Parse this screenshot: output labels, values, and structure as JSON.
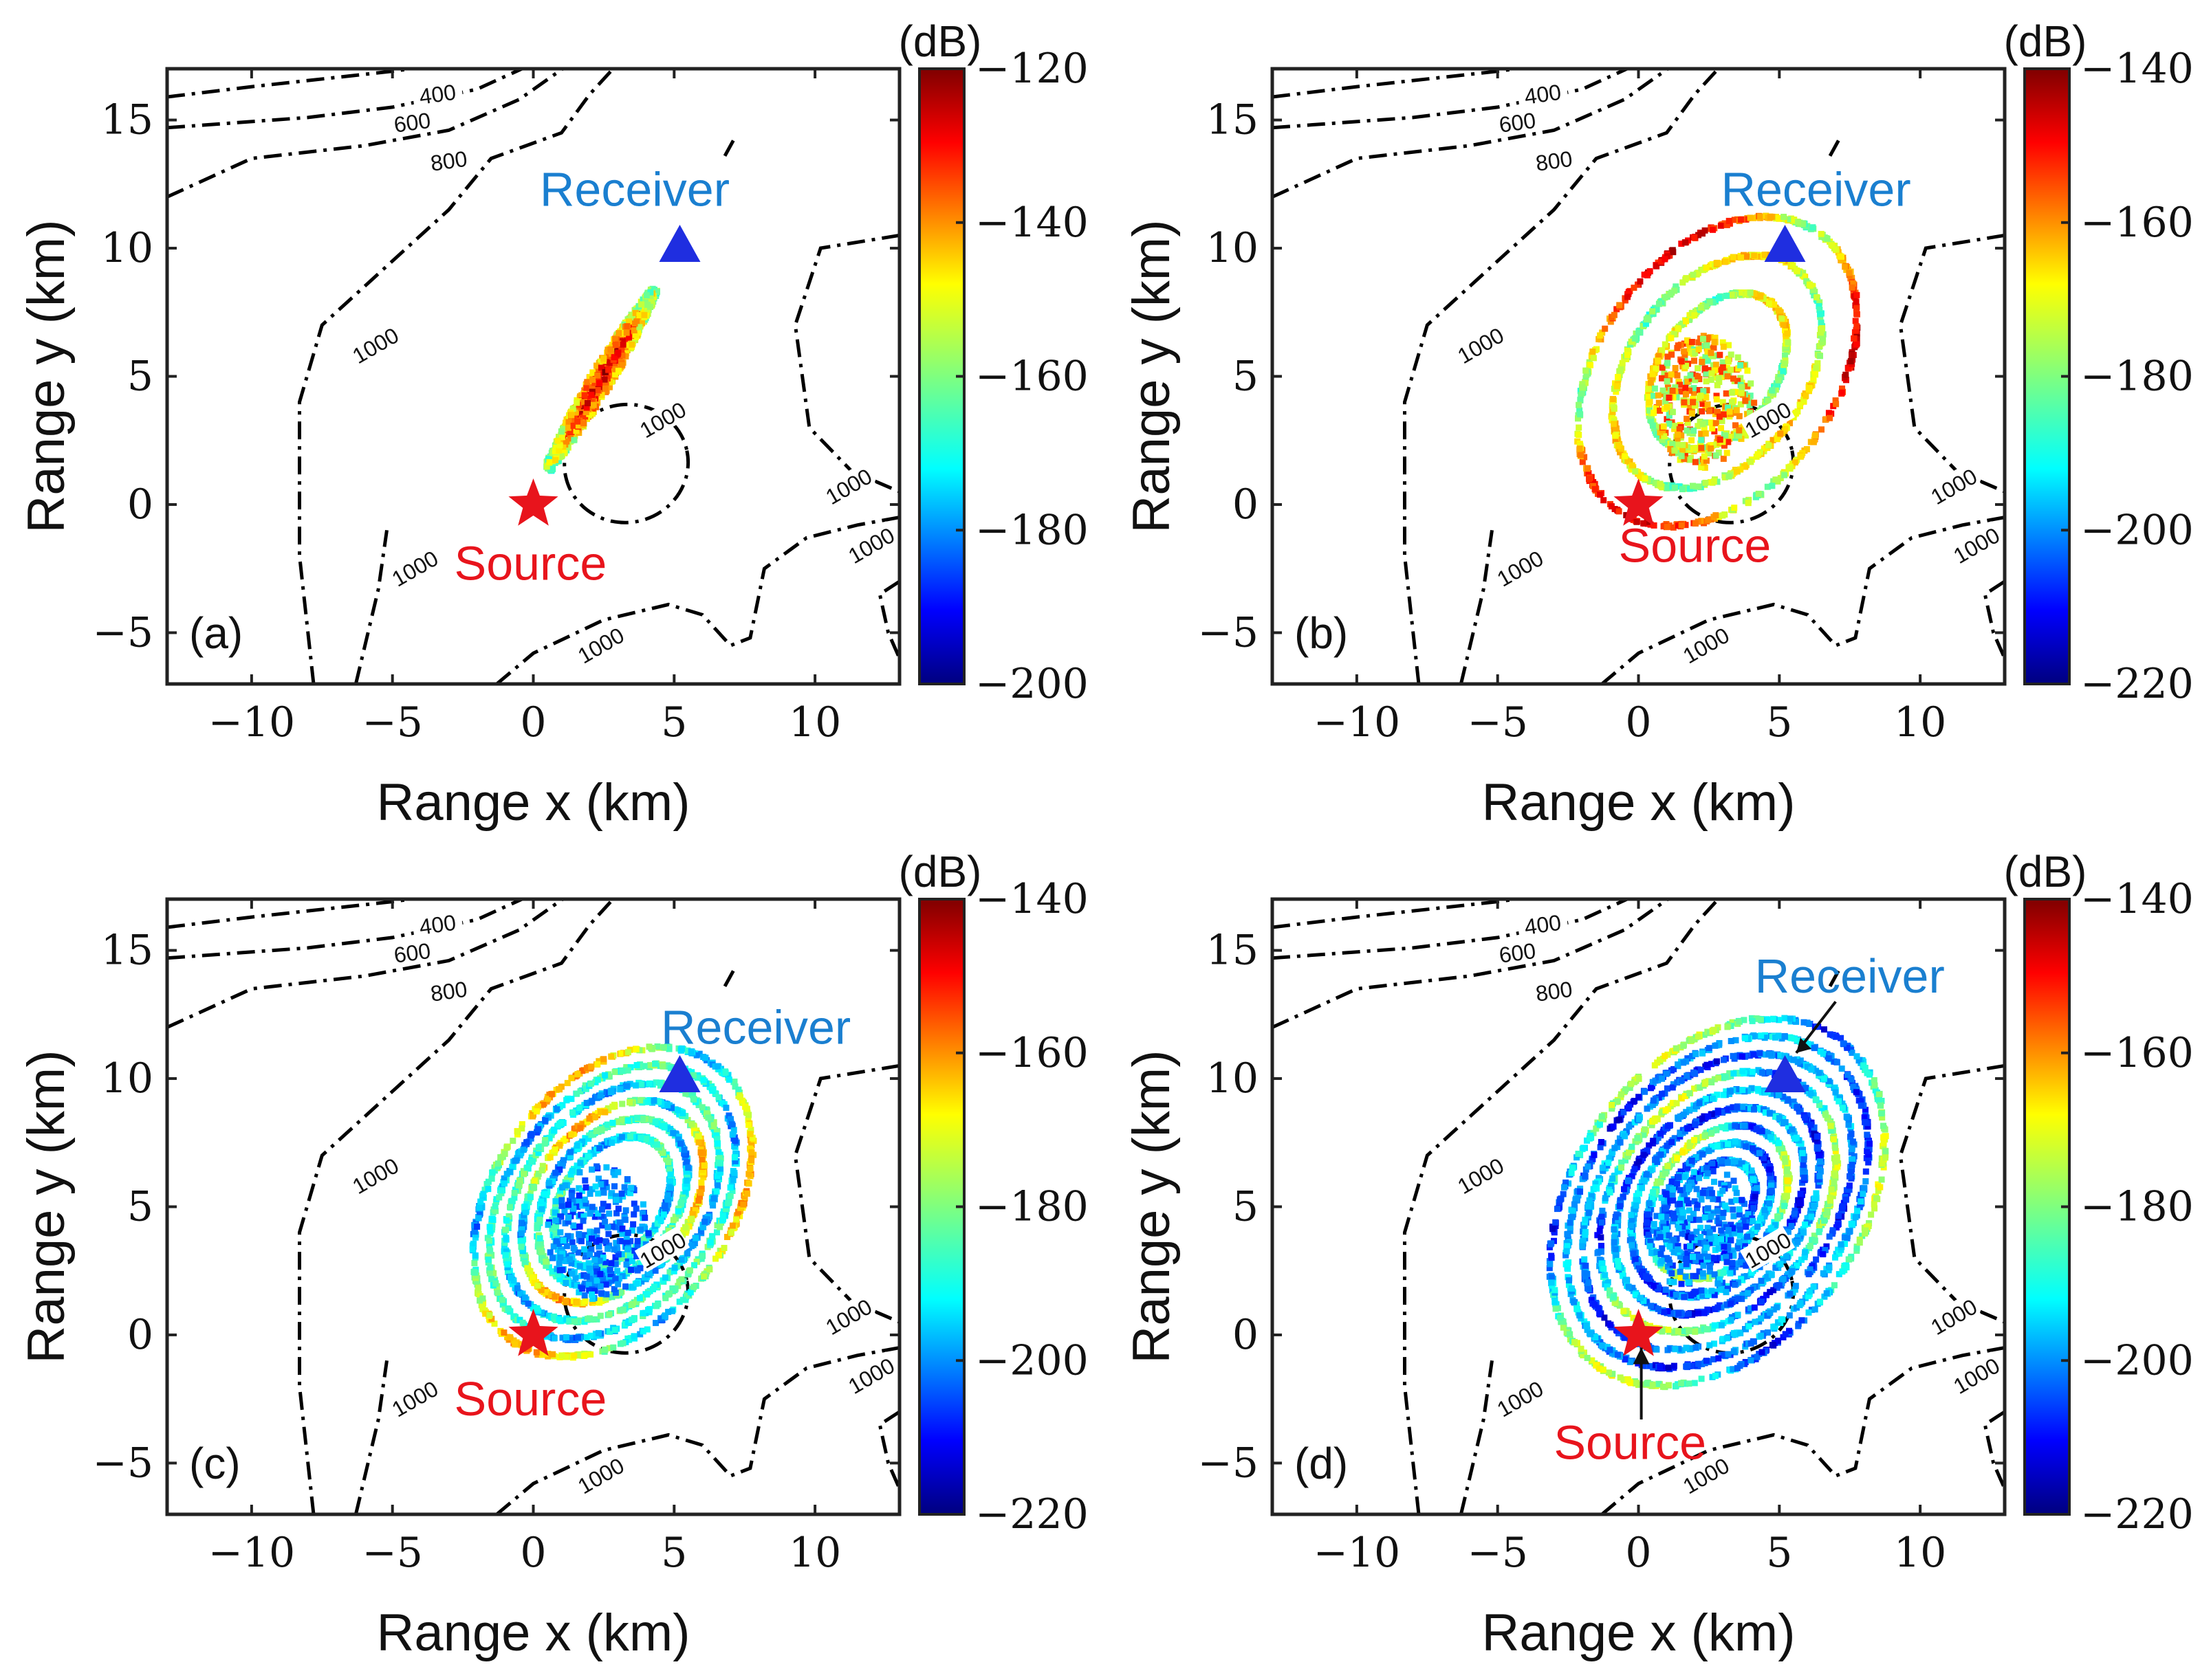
{
  "figure": {
    "colormap": "jet",
    "contour_color": "#000000",
    "source_color": "#e8141c",
    "receiver_color": "#1f2ee0",
    "source_text_color": "#e8141c",
    "receiver_text_color": "#1a7fd0"
  },
  "chart_data": [
    {
      "type": "heatmap",
      "panel_label": "(a)",
      "xlabel": "Range x (km)",
      "ylabel": "Range y (km)",
      "xlim": [
        -13,
        13
      ],
      "ylim": [
        -7,
        17
      ],
      "xticks": [
        -10,
        -5,
        0,
        5,
        10
      ],
      "yticks": [
        -5,
        0,
        5,
        10,
        15
      ],
      "xtick_labels": [
        "−10",
        "−5",
        "0",
        "5",
        "10"
      ],
      "ytick_labels": [
        "−5",
        "0",
        "5",
        "10",
        "15"
      ],
      "colorbar": {
        "unit": "(dB)",
        "min": -200,
        "max": -120,
        "ticks": [
          -120,
          -140,
          -160,
          -180,
          -200
        ],
        "tick_labels": [
          "−120",
          "−140",
          "−160",
          "−180",
          "−200"
        ]
      },
      "source": {
        "label": "Source",
        "x": 0,
        "y": 0
      },
      "receiver": {
        "label": "Receiver",
        "x": 5.2,
        "y": 10
      },
      "contour_labels": [
        "400",
        "600",
        "800",
        "1000"
      ],
      "pattern": "narrow elongated streak from source toward receiver"
    },
    {
      "type": "heatmap",
      "panel_label": "(b)",
      "xlabel": "Range x (km)",
      "ylabel": "Range y (km)",
      "xlim": [
        -13,
        13
      ],
      "ylim": [
        -7,
        17
      ],
      "xticks": [
        -10,
        -5,
        0,
        5,
        10
      ],
      "yticks": [
        -5,
        0,
        5,
        10,
        15
      ],
      "xtick_labels": [
        "−10",
        "−5",
        "0",
        "5",
        "10"
      ],
      "ytick_labels": [
        "−5",
        "0",
        "5",
        "10",
        "15"
      ],
      "colorbar": {
        "unit": "(dB)",
        "min": -220,
        "max": -140,
        "ticks": [
          -140,
          -160,
          -180,
          -200,
          -220
        ],
        "tick_labels": [
          "−140",
          "−160",
          "−180",
          "−200",
          "−220"
        ]
      },
      "source": {
        "label": "Source",
        "x": 0,
        "y": 0
      },
      "receiver": {
        "label": "Receiver",
        "x": 5.2,
        "y": 10
      },
      "contour_labels": [
        "400",
        "600",
        "800",
        "1000"
      ],
      "pattern": "single elliptical ring with bright interior"
    },
    {
      "type": "heatmap",
      "panel_label": "(c)",
      "xlabel": "Range x (km)",
      "ylabel": "Range y (km)",
      "xlim": [
        -13,
        13
      ],
      "ylim": [
        -7,
        17
      ],
      "xticks": [
        -10,
        -5,
        0,
        5,
        10
      ],
      "yticks": [
        -5,
        0,
        5,
        10,
        15
      ],
      "xtick_labels": [
        "−10",
        "−5",
        "0",
        "5",
        "10"
      ],
      "ytick_labels": [
        "−5",
        "0",
        "5",
        "10",
        "15"
      ],
      "colorbar": {
        "unit": "(dB)",
        "min": -220,
        "max": -140,
        "ticks": [
          -140,
          -160,
          -180,
          -200,
          -220
        ],
        "tick_labels": [
          "−140",
          "−160",
          "−180",
          "−200",
          "−220"
        ]
      },
      "source": {
        "label": "Source",
        "x": 0,
        "y": 0
      },
      "receiver": {
        "label": "Receiver",
        "x": 5.2,
        "y": 10
      },
      "contour_labels": [
        "400",
        "600",
        "800",
        "1000"
      ],
      "pattern": "multiple nested elliptical rings"
    },
    {
      "type": "heatmap",
      "panel_label": "(d)",
      "xlabel": "Range x (km)",
      "ylabel": "Range y (km)",
      "xlim": [
        -13,
        13
      ],
      "ylim": [
        -7,
        17
      ],
      "xticks": [
        -10,
        -5,
        0,
        5,
        10
      ],
      "yticks": [
        -5,
        0,
        5,
        10,
        15
      ],
      "xtick_labels": [
        "−10",
        "−5",
        "0",
        "5",
        "10"
      ],
      "ytick_labels": [
        "−5",
        "0",
        "5",
        "10",
        "15"
      ],
      "colorbar": {
        "unit": "(dB)",
        "min": -220,
        "max": -140,
        "ticks": [
          -140,
          -160,
          -180,
          -200,
          -220
        ],
        "tick_labels": [
          "−140",
          "−160",
          "−180",
          "−200",
          "−220"
        ]
      },
      "source": {
        "label": "Source",
        "x": 0,
        "y": 0
      },
      "receiver": {
        "label": "Receiver",
        "x": 5.2,
        "y": 10
      },
      "contour_labels": [
        "400",
        "600",
        "800",
        "1000"
      ],
      "pattern": "many nested elliptical rings, mostly low level, with arrows to labels"
    }
  ]
}
